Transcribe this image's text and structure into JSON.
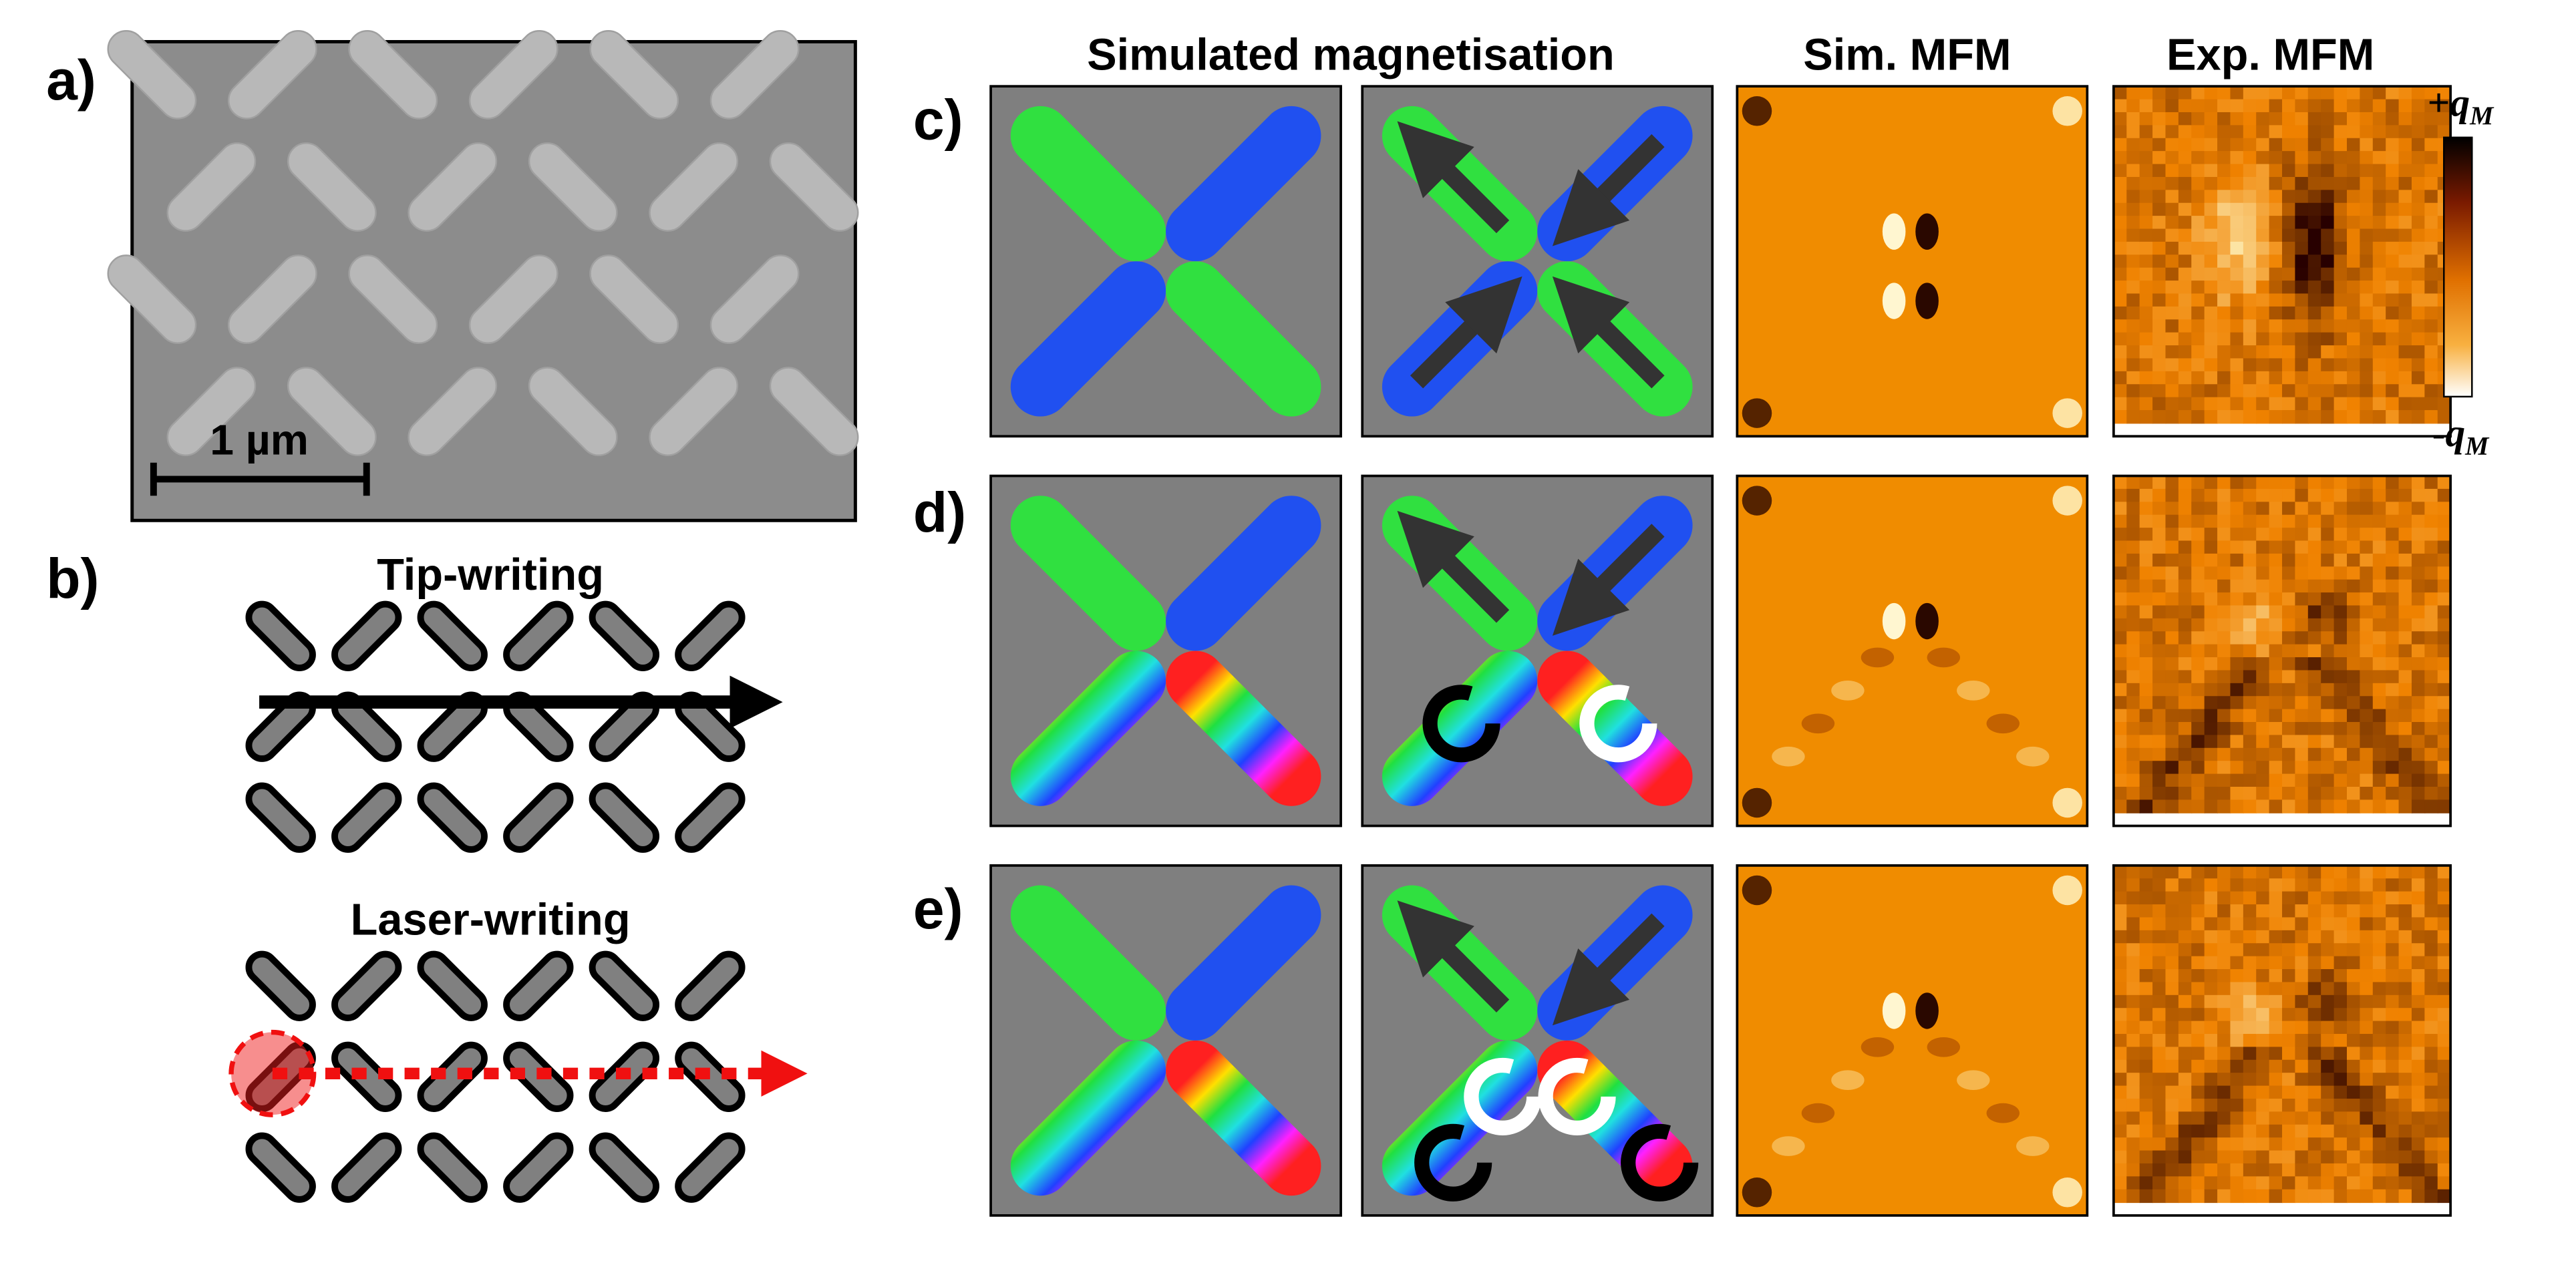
{
  "panel_labels": {
    "a": "a)",
    "b": "b)",
    "c": "c)",
    "d": "d)",
    "e": "e)"
  },
  "sem": {
    "scale_bar": "1 µm"
  },
  "schematic": {
    "tip_title": "Tip-writing",
    "laser_title": "Laser-writing"
  },
  "columns": [
    "Simulated magnetisation",
    "Sim. MFM",
    "Exp. MFM"
  ],
  "colorbar": {
    "top_sign": "+",
    "bottom_sign": "-",
    "symbol": "q",
    "subscript": "M"
  }
}
